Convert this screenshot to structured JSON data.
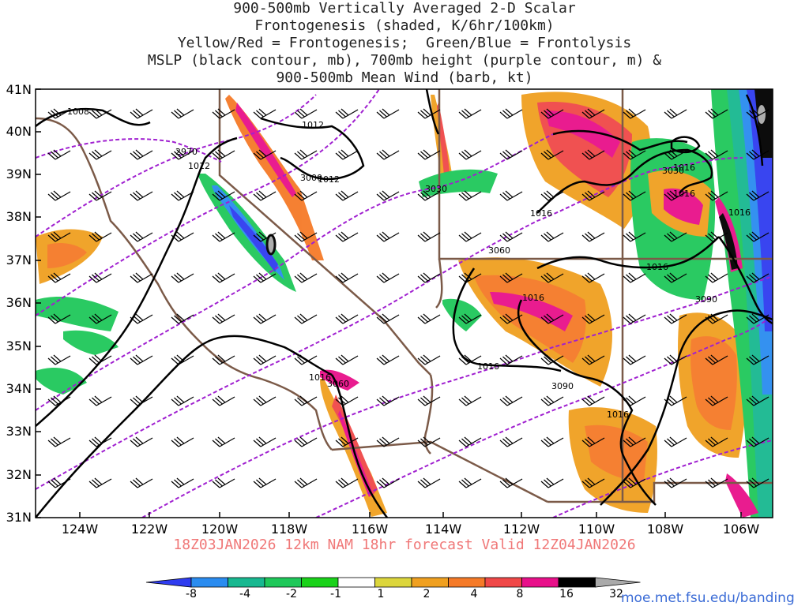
{
  "title_lines": [
    "900-500mb Vertically Averaged 2-D Scalar",
    "Frontogenesis (shaded, K/6hr/100km)",
    "Yellow/Red = Frontogenesis;  Green/Blue = Frontolysis",
    "MSLP (black contour, mb), 700mb height (purple contour, m) &",
    "900-500mb Mean Wind (barb, kt)"
  ],
  "lat_labels": [
    "41N",
    "40N",
    "39N",
    "38N",
    "37N",
    "36N",
    "35N",
    "34N",
    "33N",
    "32N",
    "31N"
  ],
  "lon_labels": [
    "124W",
    "122W",
    "120W",
    "118W",
    "116W",
    "114W",
    "112W",
    "110W",
    "108W",
    "106W"
  ],
  "valid_line": "18Z03JAN2026 12km NAM 18hr forecast Valid 12Z04JAN2026",
  "mslp_labels": [
    "1008",
    "1012",
    "1012",
    "1012",
    "1016",
    "1016",
    "1016",
    "1016",
    "1016",
    "1016",
    "1016",
    "1016",
    "1016"
  ],
  "height_labels": [
    "2970",
    "3000",
    "3030",
    "3030",
    "3060",
    "3060",
    "3090",
    "3090"
  ],
  "colorbar": {
    "labels": [
      "-8",
      "-4",
      "-2",
      "-1",
      "1",
      "2",
      "4",
      "8",
      "16",
      "32"
    ],
    "colors": [
      "#2f3cf0",
      "#2a8cf0",
      "#18b890",
      "#1fc85a",
      "#1ad21a",
      "#ffffff",
      "#dcd63c",
      "#f0a020",
      "#f57a28",
      "#f04848",
      "#e8108a",
      "#000000",
      "#aaaaaa"
    ]
  },
  "credit": "moe.met.fsu.edu/banding"
}
